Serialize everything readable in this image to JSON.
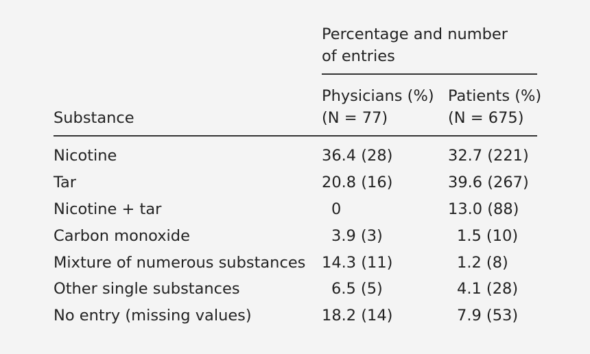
{
  "table": {
    "header": {
      "group_title_line1": "Percentage and number",
      "group_title_line2": "of entries",
      "col_substance": "Substance",
      "col_physicians_line1": "Physicians (%)",
      "col_physicians_line2": "(N = 77)",
      "col_patients_line1": "Patients (%)",
      "col_patients_line2": "(N = 675)"
    },
    "rows": [
      {
        "substance": "Nicotine",
        "physicians": "36.4 (28)",
        "patients": "32.7 (221)"
      },
      {
        "substance": "Tar",
        "physicians": "20.8 (16)",
        "patients": "39.6 (267)"
      },
      {
        "substance": "Nicotine + tar",
        "physicians": "0",
        "patients": "13.0 (88)"
      },
      {
        "substance": "Carbon monoxide",
        "physicians": "3.9 (3)",
        "patients": "1.5 (10)"
      },
      {
        "substance": "Mixture of numerous substances",
        "physicians": "14.3 (11)",
        "patients": "1.2 (8)"
      },
      {
        "substance": "Other single substances",
        "physicians": "6.5 (5)",
        "patients": "4.1 (28)"
      },
      {
        "substance": "No entry (missing values)",
        "physicians": "18.2 (14)",
        "patients": "7.9 (53)"
      }
    ]
  }
}
